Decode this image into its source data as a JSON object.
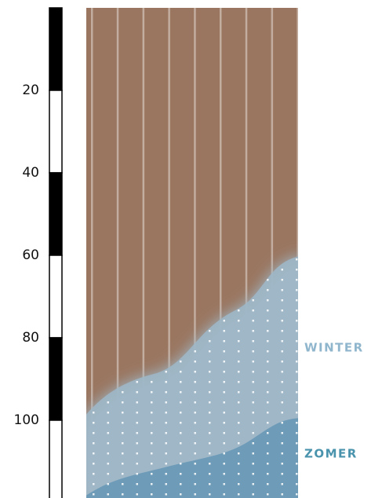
{
  "scale": {
    "ticks": [
      20,
      40,
      60,
      80,
      100
    ]
  },
  "labels": {
    "winter": "WINTER",
    "zomer": "ZOMER"
  }
}
